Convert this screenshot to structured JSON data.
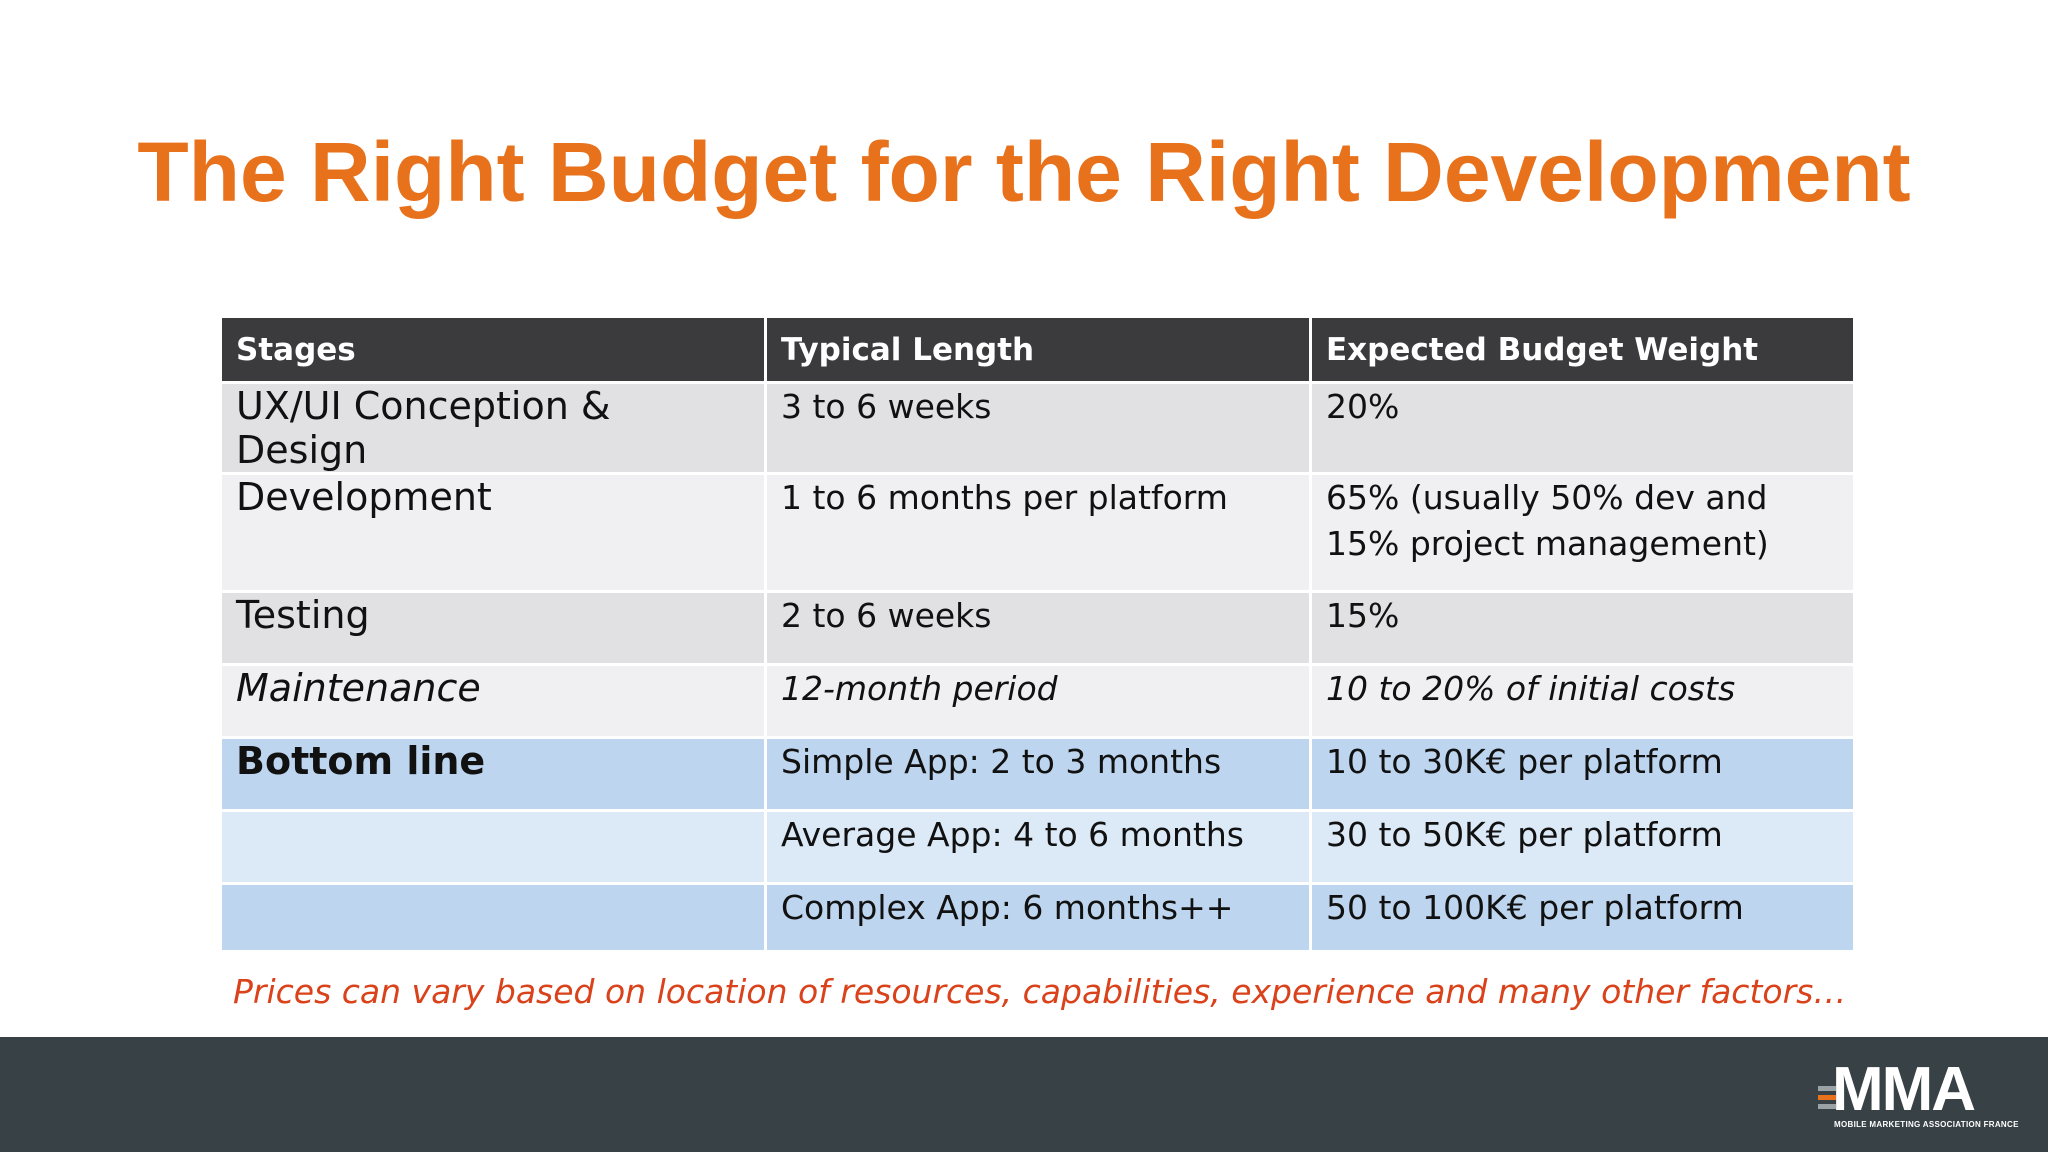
{
  "slide": {
    "title": "The Right Budget for the Right Development",
    "note": "Prices can vary based on location of resources, capabilities, experience and many other factors…",
    "colors": {
      "title": "#e8711c",
      "note": "#d9421a",
      "header_bg": "#3b3a3d",
      "footer_bg": "#384145",
      "blue_row": "#bdd5ee"
    }
  },
  "table": {
    "headers": [
      "Stages",
      "Typical Length",
      "Expected Budget Weight"
    ],
    "rows": [
      {
        "stage": "UX/UI Conception & Design",
        "length": "3 to 6 weeks",
        "budget": "20%"
      },
      {
        "stage": "Development",
        "length": "1 to 6 months per platform",
        "budget": "65% (usually 50% dev and 15% project management)"
      },
      {
        "stage": "Testing",
        "length": "2 to 6 weeks",
        "budget": "15%"
      },
      {
        "stage": "Maintenance",
        "length": "12-month period",
        "budget": "10 to 20% of initial costs"
      },
      {
        "stage": "Bottom line",
        "length": "Simple App: 2 to 3 months",
        "budget": "10 to 30K€ per platform"
      },
      {
        "stage": "",
        "length": "Average App: 4 to 6 months",
        "budget": "30 to 50K€ per platform"
      },
      {
        "stage": "",
        "length": "Complex App: 6 months++",
        "budget": "50 to 100K€ per platform"
      }
    ]
  },
  "logo": {
    "text": "MMA",
    "subtitle": "MOBILE MARKETING ASSOCIATION FRANCE"
  }
}
